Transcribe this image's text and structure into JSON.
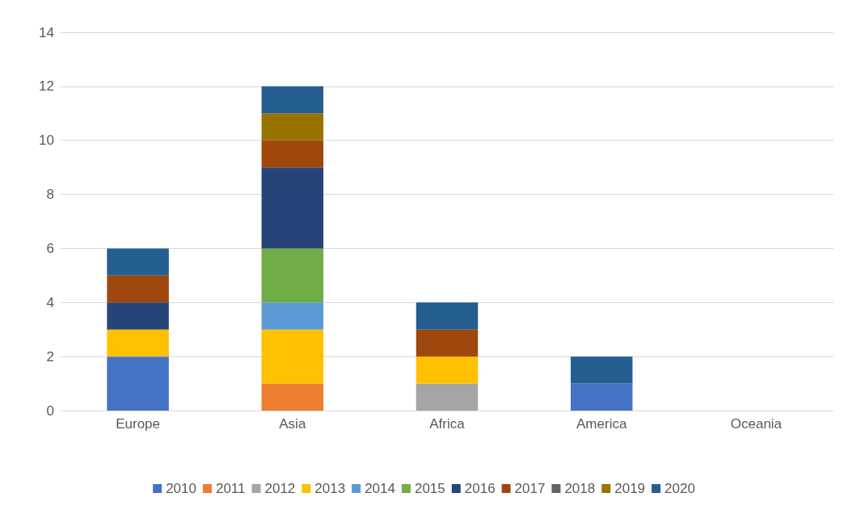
{
  "chart_data": {
    "type": "bar",
    "stacked": true,
    "categories": [
      "Europe",
      "Asia",
      "Africa",
      "America",
      "Oceania"
    ],
    "series": [
      {
        "name": "2010",
        "color": "#4472c4",
        "values": [
          2,
          0,
          0,
          1,
          0
        ]
      },
      {
        "name": "2011",
        "color": "#ed7d31",
        "values": [
          0,
          1,
          0,
          0,
          0
        ]
      },
      {
        "name": "2012",
        "color": "#a5a5a5",
        "values": [
          0,
          0,
          1,
          0,
          0
        ]
      },
      {
        "name": "2013",
        "color": "#ffc000",
        "values": [
          1,
          2,
          1,
          0,
          0
        ]
      },
      {
        "name": "2014",
        "color": "#5b9bd5",
        "values": [
          0,
          1,
          0,
          0,
          0
        ]
      },
      {
        "name": "2015",
        "color": "#70ad47",
        "values": [
          0,
          2,
          0,
          0,
          0
        ]
      },
      {
        "name": "2016",
        "color": "#264478",
        "values": [
          1,
          3,
          0,
          0,
          0
        ]
      },
      {
        "name": "2017",
        "color": "#9e480e",
        "values": [
          1,
          1,
          1,
          0,
          0
        ]
      },
      {
        "name": "2018",
        "color": "#636363",
        "values": [
          0,
          0,
          0,
          0,
          0
        ]
      },
      {
        "name": "2019",
        "color": "#997300",
        "values": [
          0,
          1,
          0,
          0,
          0
        ]
      },
      {
        "name": "2020",
        "color": "#255e91",
        "values": [
          1,
          1,
          1,
          1,
          0
        ]
      }
    ],
    "ylim": [
      0,
      14
    ],
    "yticks": [
      0,
      2,
      4,
      6,
      8,
      10,
      12,
      14
    ],
    "grid": "y",
    "legend": "bottom"
  }
}
